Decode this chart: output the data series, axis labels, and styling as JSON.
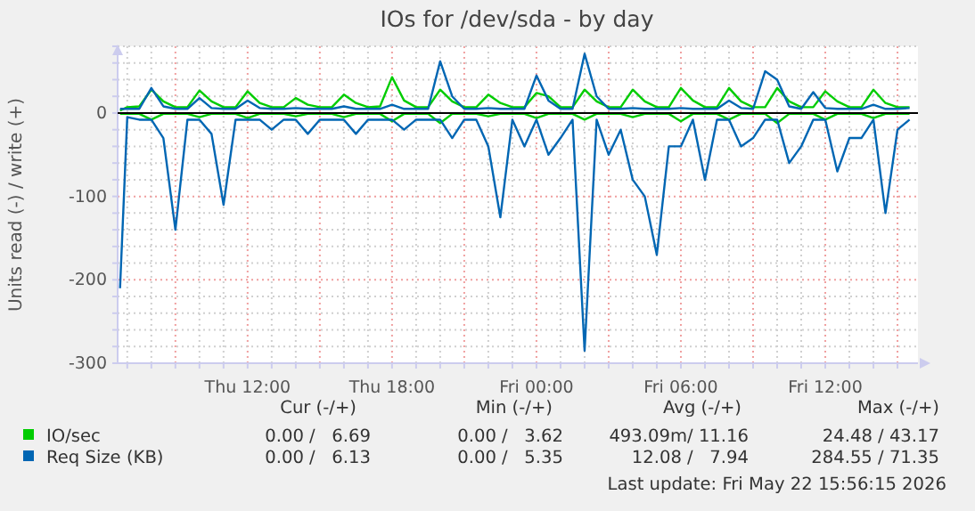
{
  "chart_data": {
    "type": "line",
    "title": "IOs for /dev/sda - by day",
    "ylabel": "Units read (-) / write (+)",
    "x": [
      "2026-05-21T06:42",
      "2026-05-21T07:00",
      "2026-05-21T07:30",
      "2026-05-21T08:00",
      "2026-05-21T08:30",
      "2026-05-21T09:00",
      "2026-05-21T09:30",
      "2026-05-21T10:00",
      "2026-05-21T10:30",
      "2026-05-21T11:00",
      "2026-05-21T11:30",
      "2026-05-21T12:00",
      "2026-05-21T12:30",
      "2026-05-21T13:00",
      "2026-05-21T13:30",
      "2026-05-21T14:00",
      "2026-05-21T14:30",
      "2026-05-21T15:00",
      "2026-05-21T15:30",
      "2026-05-21T16:00",
      "2026-05-21T16:30",
      "2026-05-21T17:00",
      "2026-05-21T17:30",
      "2026-05-21T18:00",
      "2026-05-21T18:30",
      "2026-05-21T19:00",
      "2026-05-21T19:30",
      "2026-05-21T20:00",
      "2026-05-21T20:30",
      "2026-05-21T21:00",
      "2026-05-21T21:30",
      "2026-05-21T22:00",
      "2026-05-21T22:30",
      "2026-05-21T23:00",
      "2026-05-21T23:30",
      "2026-05-22T00:00",
      "2026-05-22T00:30",
      "2026-05-22T01:00",
      "2026-05-22T01:30",
      "2026-05-22T02:00",
      "2026-05-22T02:30",
      "2026-05-22T03:00",
      "2026-05-22T03:30",
      "2026-05-22T04:00",
      "2026-05-22T04:30",
      "2026-05-22T05:00",
      "2026-05-22T05:30",
      "2026-05-22T06:00",
      "2026-05-22T06:30",
      "2026-05-22T07:00",
      "2026-05-22T07:30",
      "2026-05-22T08:00",
      "2026-05-22T08:30",
      "2026-05-22T09:00",
      "2026-05-22T09:30",
      "2026-05-22T10:00",
      "2026-05-22T10:30",
      "2026-05-22T11:00",
      "2026-05-22T11:30",
      "2026-05-22T12:00",
      "2026-05-22T12:30",
      "2026-05-22T13:00",
      "2026-05-22T13:30",
      "2026-05-22T14:00",
      "2026-05-22T14:30",
      "2026-05-22T15:00",
      "2026-05-22T15:30"
    ],
    "series": [
      {
        "name": "IO/sec",
        "color": "#00cc00",
        "values": [
          3,
          7,
          8,
          28,
          14,
          7,
          7,
          27,
          14,
          7,
          7,
          26,
          12,
          7,
          7,
          18,
          10,
          7,
          7,
          22,
          12,
          7,
          8,
          43,
          15,
          7,
          7,
          28,
          14,
          7,
          7,
          22,
          12,
          7,
          7,
          24,
          20,
          7,
          7,
          28,
          14,
          7,
          7,
          28,
          14,
          7,
          7,
          30,
          15,
          7,
          7,
          30,
          14,
          7,
          7,
          30,
          14,
          7,
          7,
          26,
          14,
          7,
          7,
          28,
          12,
          7,
          7
        ]
      },
      {
        "color": "#00cc00",
        "values": [
          -1,
          -1,
          -1,
          -8,
          -1,
          -1,
          -1,
          -5,
          -1,
          -1,
          -1,
          -6,
          -1,
          -1,
          -1,
          -4,
          -1,
          -1,
          -1,
          -5,
          -1,
          -1,
          -1,
          -10,
          -1,
          -1,
          -1,
          -12,
          -1,
          -1,
          -1,
          -4,
          -1,
          -1,
          -1,
          -6,
          -1,
          -1,
          -1,
          -8,
          -1,
          -1,
          -1,
          -5,
          -1,
          -1,
          -1,
          -10,
          -1,
          -1,
          -1,
          -8,
          -1,
          -1,
          -1,
          -12,
          -1,
          -1,
          -1,
          -8,
          -1,
          -1,
          -1,
          -6,
          -1,
          -1,
          -1
        ]
      },
      {
        "name": "Req Size (KB)",
        "color": "#0066b3",
        "values": [
          5,
          5,
          5,
          30,
          8,
          5,
          5,
          18,
          6,
          5,
          5,
          15,
          6,
          5,
          5,
          6,
          5,
          5,
          5,
          8,
          5,
          5,
          5,
          10,
          5,
          5,
          5,
          62,
          20,
          5,
          5,
          6,
          5,
          5,
          5,
          45,
          15,
          5,
          5,
          71,
          20,
          5,
          5,
          6,
          5,
          5,
          5,
          6,
          5,
          5,
          5,
          15,
          6,
          5,
          50,
          40,
          8,
          5,
          25,
          6,
          5,
          5,
          5,
          10,
          5,
          5,
          6
        ]
      },
      {
        "color": "#0066b3",
        "values": [
          -210,
          -5,
          -8,
          -8,
          -30,
          -140,
          -8,
          -8,
          -25,
          -110,
          -8,
          -8,
          -8,
          -20,
          -8,
          -8,
          -25,
          -8,
          -8,
          -8,
          -25,
          -8,
          -8,
          -8,
          -20,
          -8,
          -8,
          -8,
          -30,
          -8,
          -8,
          -40,
          -125,
          -8,
          -40,
          -8,
          -50,
          -30,
          -8,
          -285,
          -8,
          -50,
          -20,
          -80,
          -100,
          -170,
          -40,
          -40,
          -8,
          -80,
          -8,
          -8,
          -40,
          -30,
          -8,
          -8,
          -60,
          -40,
          -8,
          -8,
          -70,
          -30,
          -30,
          -8,
          -120,
          -20,
          -8
        ]
      }
    ],
    "xlim": [
      "2026-05-21T06:36",
      "2026-05-22T15:51"
    ],
    "xticks": [
      {
        "value": "2026-05-21T07:00",
        "label": null
      },
      {
        "value": "2026-05-21T08:00",
        "label": null
      },
      {
        "value": "2026-05-21T09:00",
        "label": null
      },
      {
        "value": "2026-05-21T10:00",
        "label": null
      },
      {
        "value": "2026-05-21T11:00",
        "label": null
      },
      {
        "value": "2026-05-21T12:00",
        "label": "Thu 12:00"
      },
      {
        "value": "2026-05-21T13:00",
        "label": null
      },
      {
        "value": "2026-05-21T14:00",
        "label": null
      },
      {
        "value": "2026-05-21T15:00",
        "label": null
      },
      {
        "value": "2026-05-21T16:00",
        "label": null
      },
      {
        "value": "2026-05-21T17:00",
        "label": null
      },
      {
        "value": "2026-05-21T18:00",
        "label": "Thu 18:00"
      },
      {
        "value": "2026-05-21T19:00",
        "label": null
      },
      {
        "value": "2026-05-21T20:00",
        "label": null
      },
      {
        "value": "2026-05-21T21:00",
        "label": null
      },
      {
        "value": "2026-05-21T22:00",
        "label": null
      },
      {
        "value": "2026-05-21T23:00",
        "label": null
      },
      {
        "value": "2026-05-22T00:00",
        "label": "Fri 00:00"
      },
      {
        "value": "2026-05-22T01:00",
        "label": null
      },
      {
        "value": "2026-05-22T02:00",
        "label": null
      },
      {
        "value": "2026-05-22T03:00",
        "label": null
      },
      {
        "value": "2026-05-22T04:00",
        "label": null
      },
      {
        "value": "2026-05-22T05:00",
        "label": null
      },
      {
        "value": "2026-05-22T06:00",
        "label": "Fri 06:00"
      },
      {
        "value": "2026-05-22T07:00",
        "label": null
      },
      {
        "value": "2026-05-22T08:00",
        "label": null
      },
      {
        "value": "2026-05-22T09:00",
        "label": null
      },
      {
        "value": "2026-05-22T10:00",
        "label": null
      },
      {
        "value": "2026-05-22T11:00",
        "label": null
      },
      {
        "value": "2026-05-22T12:00",
        "label": "Fri 12:00"
      },
      {
        "value": "2026-05-22T13:00",
        "label": null
      },
      {
        "value": "2026-05-22T14:00",
        "label": null
      },
      {
        "value": "2026-05-22T15:00",
        "label": null
      }
    ],
    "ylim": [
      -300,
      80
    ],
    "yticks": [
      -300,
      {
        "value": -280,
        "label": null
      },
      {
        "value": -260,
        "label": null
      },
      {
        "value": -240,
        "label": null
      },
      {
        "value": -220,
        "label": null
      },
      -200,
      {
        "value": -180,
        "label": null
      },
      {
        "value": -160,
        "label": null
      },
      {
        "value": -140,
        "label": null
      },
      {
        "value": -120,
        "label": null
      },
      -100,
      {
        "value": -80,
        "label": null
      },
      {
        "value": -60,
        "label": null
      },
      {
        "value": -40,
        "label": null
      },
      {
        "value": -20,
        "label": null
      },
      0,
      {
        "value": 20,
        "label": null
      },
      {
        "value": 40,
        "label": null
      },
      {
        "value": 60,
        "label": null
      },
      {
        "value": 80,
        "label": null
      }
    ],
    "grid": true,
    "legend": "bottom",
    "marker": "none",
    "line_style": "solid",
    "annotations": [
      "Cur (-/+)",
      "Min (-/+)",
      "Avg (-/+)",
      "Max (-/+)",
      "0.00 /   6.69",
      "0.00 /   3.62",
      "493.09m/ 11.16",
      "24.48 / 43.17",
      "0.00 /   6.13",
      "0.00 /   5.35",
      "12.08 /   7.94",
      "284.55 / 71.35",
      "Last update: Fri May 22 15:56:15 2026"
    ]
  }
}
